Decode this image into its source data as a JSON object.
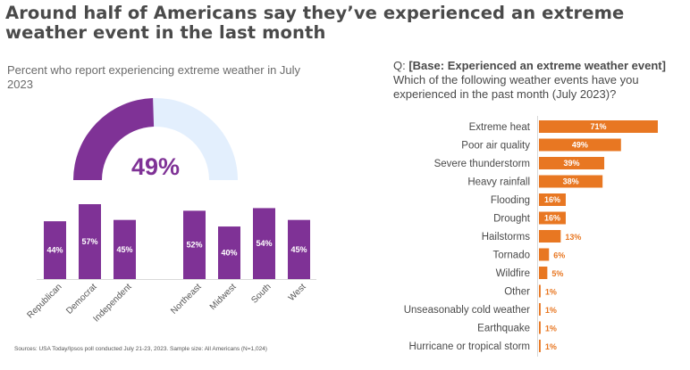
{
  "title": "Around half of Americans say they’ve experienced an extreme weather event in the last month",
  "subtitle": "Percent who report experiencing extreme weather in July 2023",
  "question": {
    "prefix": "Q: ",
    "base": "[Base: Experienced an extreme weather event]",
    "text": "Which of the following weather events have you experienced in the past month (July 2023)?"
  },
  "footnote": "Sources: USA Today/Ipsos poll conducted July 21-23, 2023. Sample size: All Americans (N=1,024)",
  "colors": {
    "purple": "#7f3296",
    "gauge_track": "#e3effd",
    "orange": "#e87722",
    "axis": "#d9d9d9"
  },
  "chart_data": [
    {
      "type": "gauge",
      "title": "Percent who report experiencing extreme weather in July 2023",
      "value": 49,
      "label": "49%",
      "max": 100
    },
    {
      "type": "bar",
      "categories": [
        "Republican",
        "Democrat",
        "Independent",
        "Northeast",
        "Midwest",
        "South",
        "West"
      ],
      "groups": [
        [
          "Republican",
          "Democrat",
          "Independent"
        ],
        [
          "Northeast",
          "Midwest",
          "South",
          "West"
        ]
      ],
      "values": [
        44,
        57,
        45,
        52,
        40,
        54,
        45
      ],
      "labels": [
        "44%",
        "57%",
        "45%",
        "52%",
        "40%",
        "54%",
        "45%"
      ],
      "ylim": [
        0,
        57
      ],
      "grid": false,
      "xlabel": "",
      "ylabel": ""
    },
    {
      "type": "bar",
      "orientation": "horizontal",
      "title": "Which of the following weather events have you experienced in the past month (July 2023)?",
      "categories": [
        "Extreme heat",
        "Poor air quality",
        "Severe thunderstorm",
        "Heavy rainfall",
        "Flooding",
        "Drought",
        "Hailstorms",
        "Tornado",
        "Wildfire",
        "Other",
        "Unseasonably cold weather",
        "Earthquake",
        "Hurricane or tropical storm"
      ],
      "values": [
        71,
        49,
        39,
        38,
        16,
        16,
        13,
        6,
        5,
        1,
        1,
        1,
        1
      ],
      "labels": [
        "71%",
        "49%",
        "39%",
        "38%",
        "16%",
        "16%",
        "13%",
        "6%",
        "5%",
        "1%",
        "1%",
        "1%",
        "1%"
      ],
      "xlim": [
        0,
        71
      ],
      "grid": false
    }
  ]
}
